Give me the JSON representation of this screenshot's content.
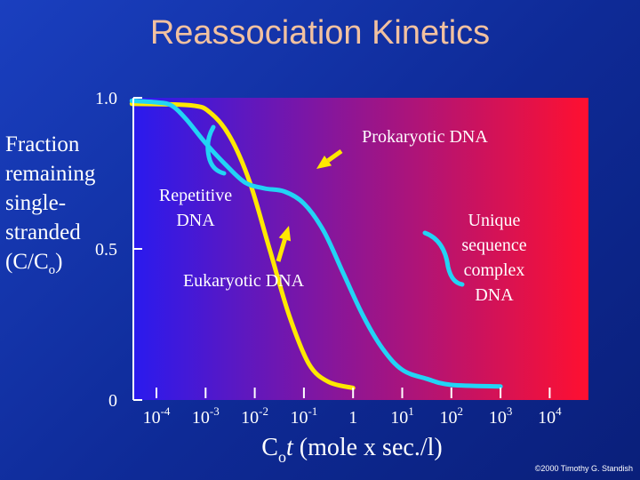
{
  "slide": {
    "title": "Reassociation Kinetics",
    "copyright": "©2000 Timothy G. Standish"
  },
  "chart_data": {
    "type": "line",
    "title": "Reassociation Kinetics",
    "ylabel_lines": [
      "Fraction",
      "remaining",
      "single-",
      "stranded",
      "(C/C",
      "o",
      ")"
    ],
    "xlabel": {
      "main": "C",
      "sub": "o",
      "italic": "t",
      "rest": " (mole x sec./l)"
    },
    "x_ticks": [
      {
        "base": "10",
        "exp": "-4"
      },
      {
        "base": "10",
        "exp": "-3"
      },
      {
        "base": "10",
        "exp": "-2"
      },
      {
        "base": "10",
        "exp": "-1"
      },
      {
        "base": "1",
        "exp": ""
      },
      {
        "base": "10",
        "exp": "1"
      },
      {
        "base": "10",
        "exp": "2"
      },
      {
        "base": "10",
        "exp": "3"
      },
      {
        "base": "10",
        "exp": "4"
      }
    ],
    "y_ticks": [
      "1.0",
      "0.5",
      "0"
    ],
    "xlim": [
      -4.5,
      4.5
    ],
    "ylim": [
      0,
      1
    ],
    "colors": {
      "plot_left": "#2a1aee",
      "plot_right": "#ff1030",
      "prokaryotic": "#ffe800",
      "eukaryotic": "#22d4f5",
      "annotation": "#ffe800",
      "axis": "#ffffff"
    },
    "series": [
      {
        "name": "Prokaryotic DNA",
        "key": "prokaryotic",
        "points": [
          [
            -4.5,
            0.98
          ],
          [
            -3.3,
            0.975
          ],
          [
            -2.9,
            0.95
          ],
          [
            -2.5,
            0.87
          ],
          [
            -2.1,
            0.72
          ],
          [
            -1.7,
            0.5
          ],
          [
            -1.3,
            0.28
          ],
          [
            -0.9,
            0.12
          ],
          [
            -0.5,
            0.06
          ],
          [
            0,
            0.04
          ]
        ]
      },
      {
        "name": "Eukaryotic DNA",
        "key": "eukaryotic",
        "points": [
          [
            -4.5,
            0.99
          ],
          [
            -4.0,
            0.985
          ],
          [
            -3.7,
            0.975
          ],
          [
            -3.4,
            0.93
          ],
          [
            -3.0,
            0.85
          ],
          [
            -2.6,
            0.78
          ],
          [
            -2.2,
            0.72
          ],
          [
            -1.8,
            0.7
          ],
          [
            -1.4,
            0.69
          ],
          [
            -1.0,
            0.65
          ],
          [
            -0.6,
            0.56
          ],
          [
            -0.2,
            0.42
          ],
          [
            0.2,
            0.28
          ],
          [
            0.6,
            0.17
          ],
          [
            1.0,
            0.1
          ],
          [
            1.5,
            0.07
          ],
          [
            2.0,
            0.05
          ],
          [
            3.0,
            0.045
          ]
        ]
      }
    ],
    "annotations": {
      "prokaryotic": "Prokaryotic DNA",
      "repetitive_lines": [
        "Repetitive",
        "DNA"
      ],
      "eukaryotic": "Eukaryotic DNA",
      "unique_lines": [
        "Unique",
        "sequence",
        "complex",
        "DNA"
      ]
    }
  }
}
